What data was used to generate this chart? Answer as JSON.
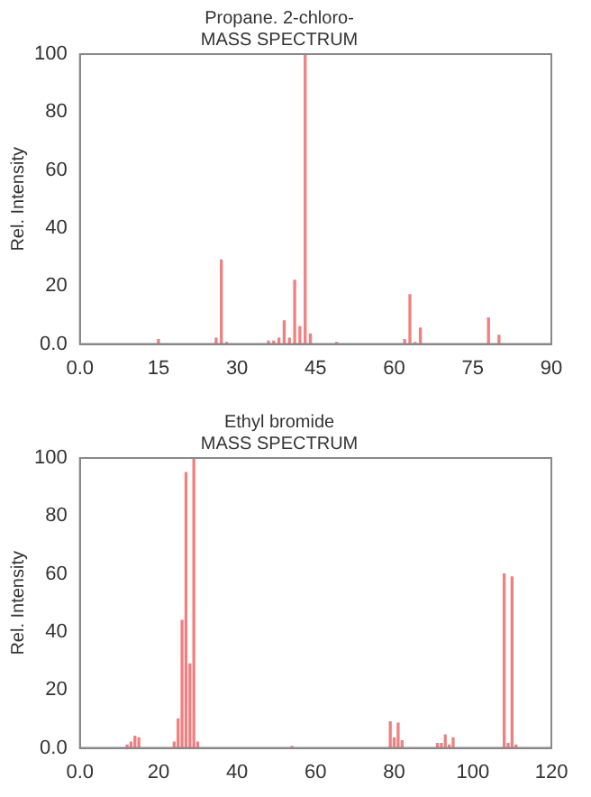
{
  "chart_data": [
    {
      "type": "bar",
      "title": "Propane. 2-chloro-",
      "subtitle": "MASS SPECTRUM",
      "ylabel": "Rel. Intensity",
      "color": "#f08080",
      "x": [
        15,
        26,
        27,
        28,
        36,
        37,
        38,
        39,
        40,
        41,
        42,
        43,
        44,
        49,
        62,
        63,
        64,
        65,
        78,
        80
      ],
      "values": [
        1.5,
        2,
        29,
        0.5,
        1,
        1,
        2,
        8,
        2,
        22,
        6,
        100,
        3.5,
        0.5,
        1.5,
        17,
        0.5,
        5.5,
        9,
        3
      ],
      "xlim": [
        0,
        90
      ],
      "xticks": [
        {
          "value": 0,
          "label": "0.0"
        },
        15,
        30,
        45,
        60,
        75,
        90
      ],
      "ylim": [
        0,
        100
      ],
      "yticks": [
        {
          "value": 0,
          "label": "0.0"
        },
        20,
        40,
        60,
        80,
        100
      ],
      "grid": false,
      "legend": false
    },
    {
      "type": "bar",
      "title": "Ethyl bromide",
      "subtitle": "MASS SPECTRUM",
      "ylabel": "Rel. Intensity",
      "color": "#f08080",
      "x": [
        12,
        13,
        14,
        15,
        24,
        25,
        26,
        27,
        28,
        29,
        30,
        54,
        79,
        80,
        81,
        82,
        91,
        92,
        93,
        94,
        95,
        108,
        109,
        110,
        111
      ],
      "values": [
        1,
        2,
        4,
        3.5,
        2,
        10,
        44,
        95,
        29,
        100,
        2,
        0.5,
        9,
        3.5,
        8.5,
        2.5,
        1.5,
        1.5,
        4.5,
        1,
        3.5,
        60,
        1.5,
        59,
        1
      ],
      "xlim": [
        0,
        120
      ],
      "xticks": [
        {
          "value": 0,
          "label": "0.0"
        },
        20,
        40,
        60,
        80,
        100,
        120
      ],
      "ylim": [
        0,
        100
      ],
      "yticks": [
        {
          "value": 0,
          "label": "0.0"
        },
        20,
        40,
        60,
        80,
        100
      ],
      "grid": false,
      "legend": false
    }
  ]
}
